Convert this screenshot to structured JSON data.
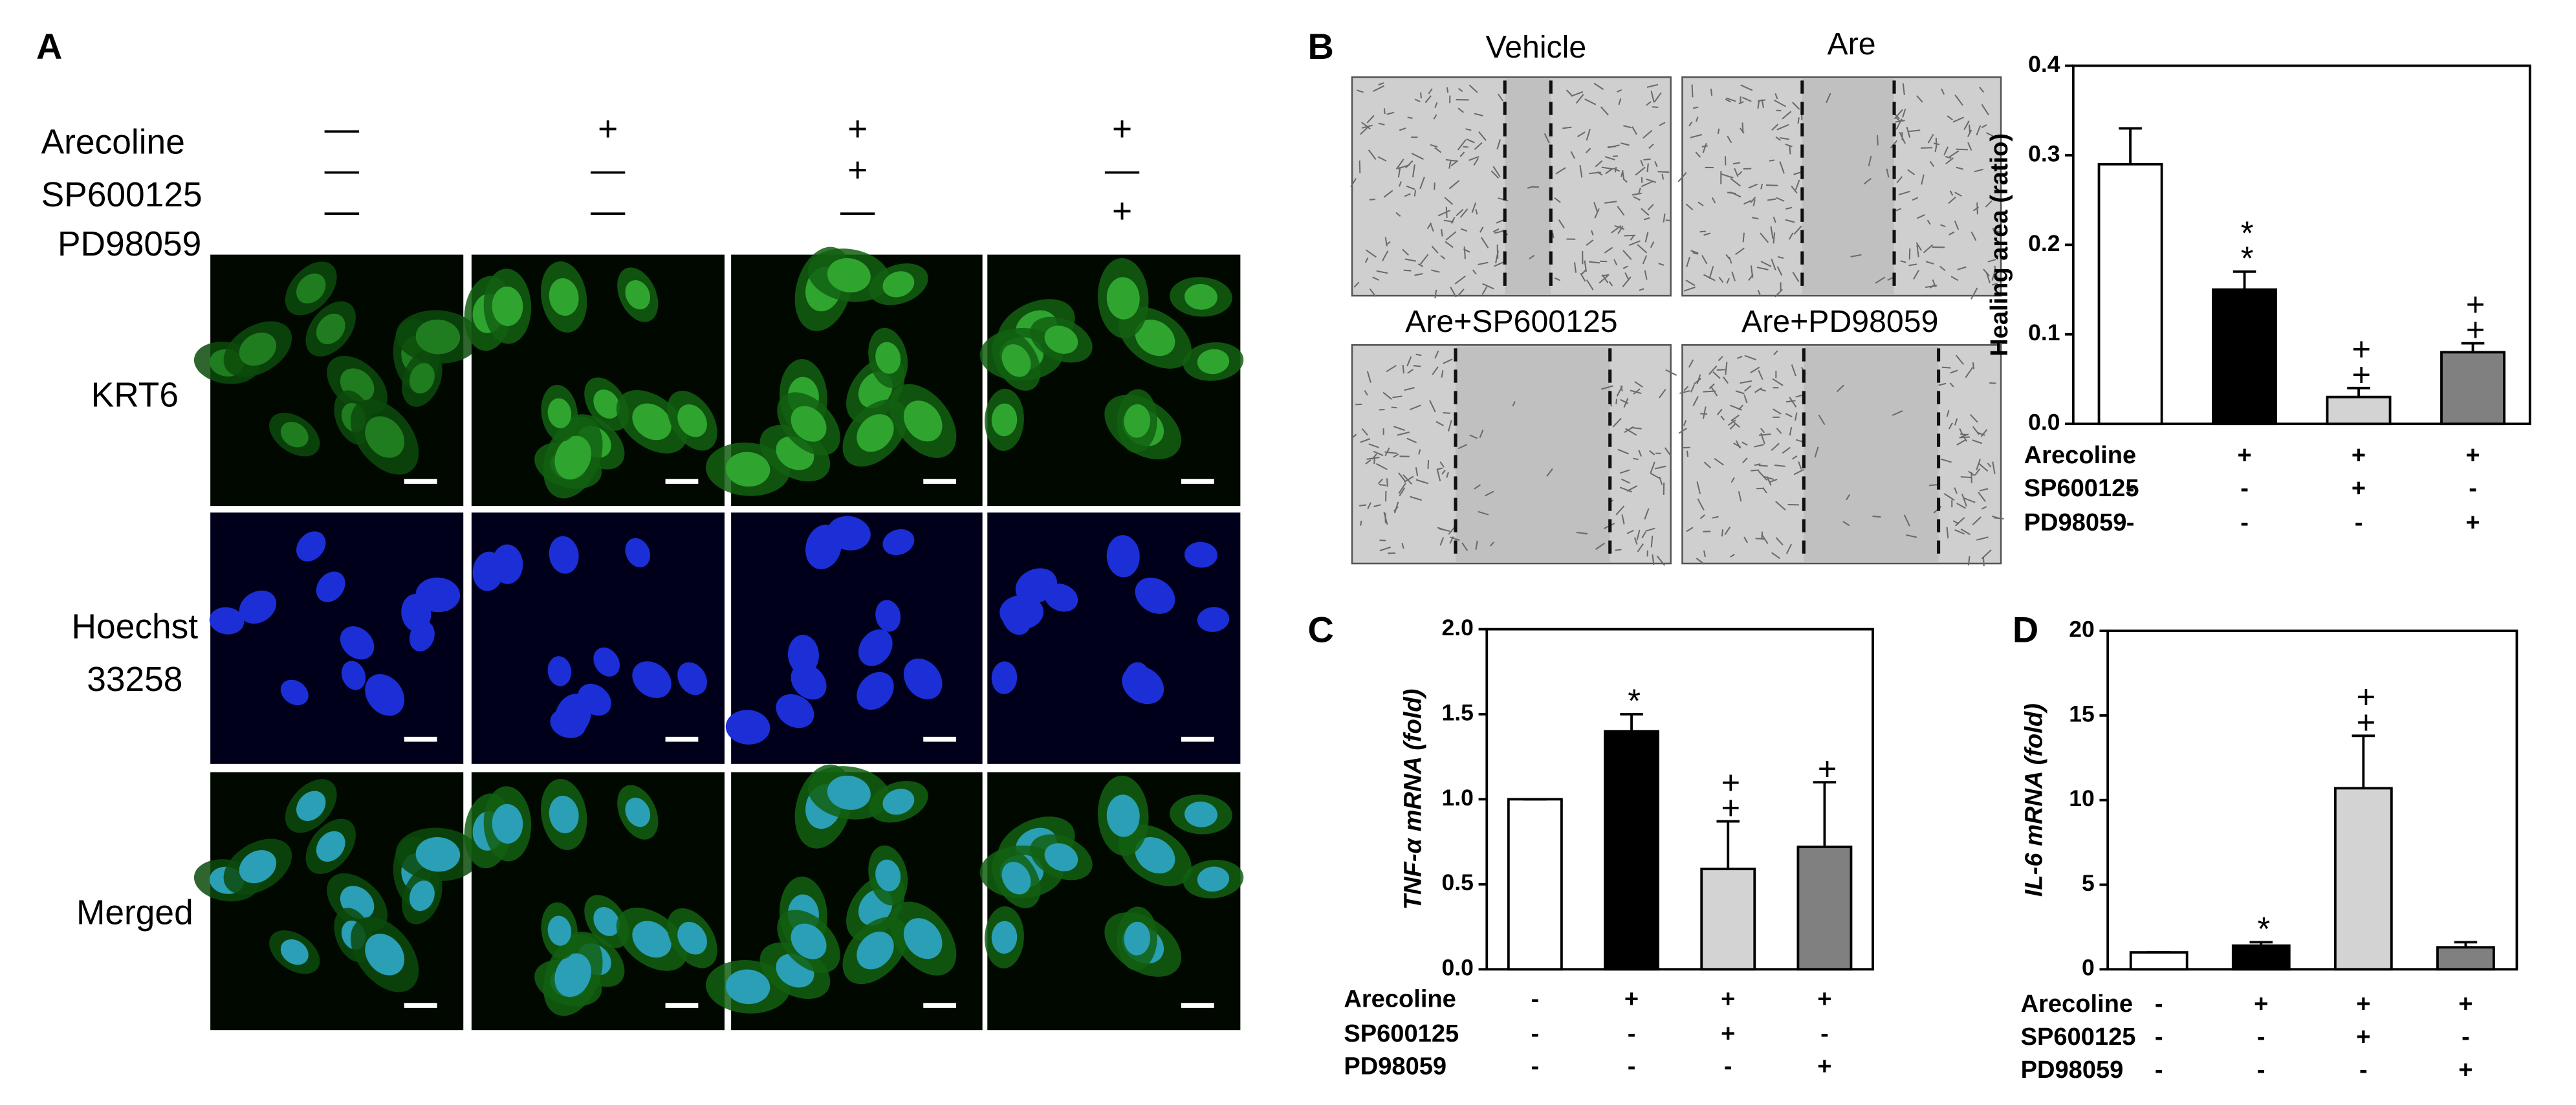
{
  "panel_a": {
    "label": "A",
    "treatments": [
      {
        "name": "Arecoline",
        "signs": [
          "—",
          "+",
          "+",
          "+"
        ]
      },
      {
        "name": "SP600125",
        "signs": [
          "—",
          "—",
          "+",
          "—"
        ]
      },
      {
        "name": "PD98059",
        "signs": [
          "—",
          "—",
          "—",
          "+"
        ]
      }
    ],
    "image_rows": [
      [
        "KRT6"
      ],
      [
        "Hoechst",
        "33258"
      ],
      [
        "Merged"
      ]
    ]
  },
  "panel_b_images": {
    "label": "B",
    "titles": [
      "Vehicle",
      "Are",
      "Are+SP600125",
      "Are+PD98059"
    ]
  },
  "chart_data": [
    {
      "type": "bar",
      "ylabel": "Healing area (ratio)",
      "categories": [
        null,
        null,
        null,
        null
      ],
      "values": [
        0.29,
        0.15,
        0.03,
        0.08
      ],
      "errors": [
        0.04,
        0.02,
        0.01,
        0.01
      ],
      "colors": [
        "#ffffff",
        "#000000",
        "#d3d3d3",
        "#808080"
      ],
      "markers": [
        null,
        "**",
        "++",
        "++"
      ],
      "ylim": [
        0,
        0.4
      ],
      "yticks": [
        {
          "value": 0,
          "label": "0.0"
        },
        0.1,
        0.2,
        0.3,
        0.4
      ],
      "treatments": [
        {
          "name": "Arecoline",
          "signs": [
            "-",
            "+",
            "+",
            "+"
          ]
        },
        {
          "name": "SP600125",
          "signs": [
            "-",
            "-",
            "+",
            "-"
          ]
        },
        {
          "name": "PD98059",
          "signs": [
            "-",
            "-",
            "-",
            "+"
          ]
        }
      ]
    },
    {
      "type": "bar",
      "label": "C",
      "ylabel": "TNF-α mRNA (fold)",
      "categories": [
        null,
        null,
        null,
        null
      ],
      "values": [
        1.0,
        1.4,
        0.59,
        0.72
      ],
      "errors": [
        0,
        0.1,
        0.28,
        0.38
      ],
      "colors": [
        "#ffffff",
        "#000000",
        "#d3d3d3",
        "#808080"
      ],
      "markers": [
        null,
        "*",
        "++",
        "+"
      ],
      "ylim": [
        0,
        2
      ],
      "yticks": [
        {
          "value": 0,
          "label": "0.0"
        },
        0.5,
        {
          "value": 1,
          "label": "1.0"
        },
        1.5,
        {
          "value": 2,
          "label": "2.0"
        }
      ],
      "treatments": [
        {
          "name": "Arecoline",
          "signs": [
            "-",
            "+",
            "+",
            "+"
          ]
        },
        {
          "name": "SP600125",
          "signs": [
            "-",
            "-",
            "+",
            "-"
          ]
        },
        {
          "name": "PD98059",
          "signs": [
            "-",
            "-",
            "-",
            "+"
          ]
        }
      ]
    },
    {
      "type": "bar",
      "label": "D",
      "ylabel": "IL-6 mRNA (fold)",
      "categories": [
        null,
        null,
        null,
        null
      ],
      "values": [
        1,
        1.4,
        10.7,
        1.3
      ],
      "errors": [
        0,
        0.2,
        3.1,
        0.3
      ],
      "colors": [
        "#ffffff",
        "#000000",
        "#d3d3d3",
        "#808080"
      ],
      "markers": [
        null,
        "*",
        "++",
        null
      ],
      "ylim": [
        0,
        20
      ],
      "yticks": [
        0,
        5,
        10,
        15,
        20
      ],
      "treatments": [
        {
          "name": "Arecoline",
          "signs": [
            "-",
            "+",
            "+",
            "+"
          ]
        },
        {
          "name": "SP600125",
          "signs": [
            "-",
            "-",
            "+",
            "-"
          ]
        },
        {
          "name": "PD98059",
          "signs": [
            "-",
            "-",
            "-",
            "+"
          ]
        }
      ]
    }
  ]
}
